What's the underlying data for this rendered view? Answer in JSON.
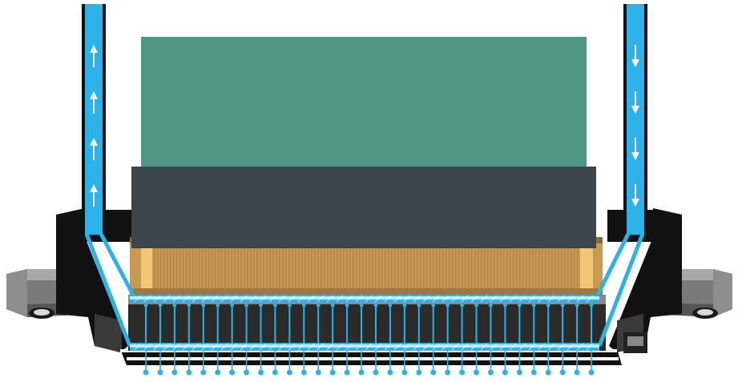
{
  "diagram": {
    "colors": {
      "background": "#ffffff",
      "module_board": "#4f9685",
      "module_cap": "#3c454c",
      "housing": "#111111",
      "mount_bracket": "#6f6f6f",
      "filter_gold": "#c79a52",
      "filter_highlight": "#f2c777",
      "channel_blue": "#2cb2e8",
      "channel_light": "#bfe9fb",
      "flow_arrow": "#ffffff"
    },
    "flow": {
      "inlet_arrow_direction": "up",
      "outlet_arrow_direction": "down",
      "inlet_arrow_count": 4,
      "outlet_arrow_count": 4
    },
    "nozzle_count": 32
  }
}
